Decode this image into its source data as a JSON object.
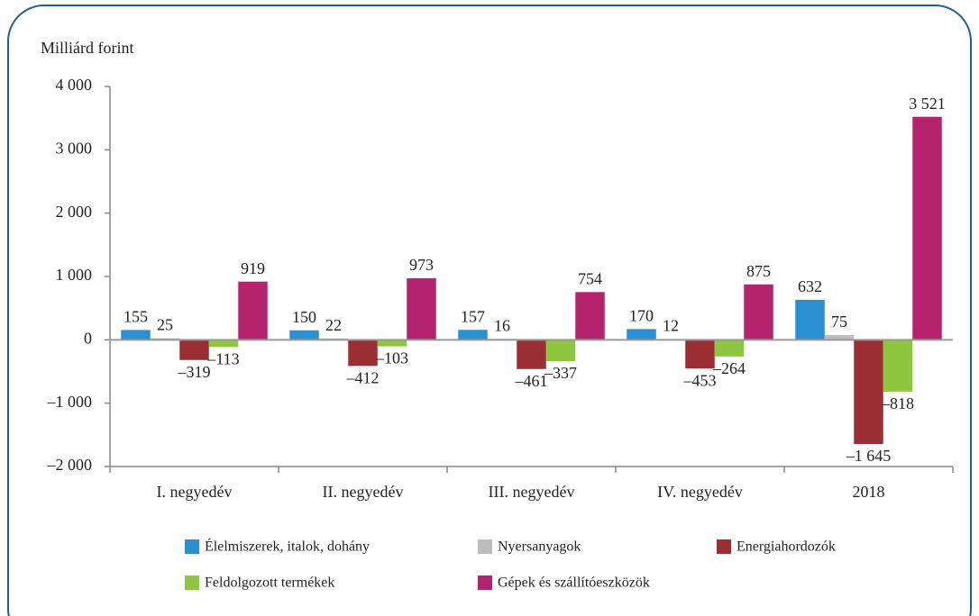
{
  "chart_data": {
    "type": "bar",
    "ylabel": "Milliárd forint",
    "categories": [
      "I. negyedév",
      "II. negyedév",
      "III. negyedév",
      "IV. negyedév",
      "2018"
    ],
    "series": [
      {
        "name": "Élelmiszerek, italok, dohány",
        "color": "#2a8fd0",
        "values": [
          155,
          150,
          157,
          170,
          632
        ]
      },
      {
        "name": "Nyersanyagok",
        "color": "#bdbdc0",
        "values": [
          25,
          22,
          16,
          12,
          75
        ]
      },
      {
        "name": "Energiahordozók",
        "color": "#9b2d35",
        "values": [
          -319,
          -412,
          -461,
          -453,
          -1645
        ],
        "value_labels": [
          "–319",
          "–412",
          "–461",
          "–453",
          "–1 645"
        ]
      },
      {
        "name": "Feldolgozott termékek",
        "color": "#8dc63f",
        "values": [
          -113,
          -103,
          -337,
          -264,
          -818
        ],
        "value_labels": [
          "–113",
          "–103",
          "–337",
          "–264",
          "–818"
        ]
      },
      {
        "name": "Gépek és szállítóeszközök",
        "color": "#b5236f",
        "values": [
          919,
          973,
          754,
          875,
          3521
        ],
        "value_labels": [
          "919",
          "973",
          "754",
          "875",
          "3 521"
        ]
      }
    ],
    "ylim": [
      -2000,
      4000
    ],
    "yticks": [
      {
        "value": 4000,
        "label": "4 000"
      },
      {
        "value": 3000,
        "label": "3 000"
      },
      {
        "value": 2000,
        "label": "2 000"
      },
      {
        "value": 1000,
        "label": "1 000"
      },
      0,
      {
        "value": -1000,
        "label": "–1 000"
      },
      {
        "value": -2000,
        "label": "–2 000"
      }
    ],
    "grid": false,
    "legend": "bottom"
  }
}
